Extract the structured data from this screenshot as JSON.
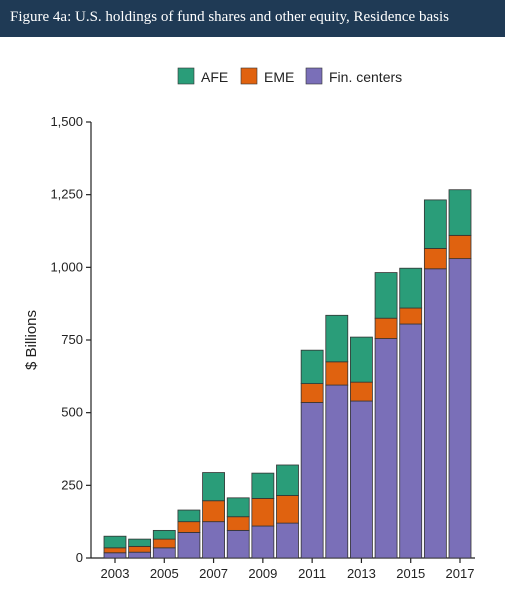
{
  "figure": {
    "title": "Figure 4a: U.S. holdings of fund shares and other equity, Residence basis"
  },
  "colors": {
    "header_bg": "#1f3a55",
    "AFE": "#2a9d79",
    "EME": "#e0620f",
    "Fin. centers": "#7a6fb8"
  },
  "chart_data": {
    "type": "bar",
    "stacked": true,
    "title": "",
    "xlabel": "",
    "ylabel": "$ Billions",
    "ylim": [
      0,
      1500
    ],
    "yticks": [
      0,
      250,
      500,
      750,
      1000,
      1250,
      1500
    ],
    "ytick_labels": [
      "0",
      "250",
      "500",
      "750",
      "1,000",
      "1,250",
      "1,500"
    ],
    "categories": [
      "2003",
      "2004",
      "2005",
      "2006",
      "2007",
      "2008",
      "2009",
      "2010",
      "2011",
      "2012",
      "2013",
      "2014",
      "2015",
      "2016",
      "2017"
    ],
    "xtick_labels": [
      "2003",
      "2005",
      "2007",
      "2009",
      "2011",
      "2013",
      "2015",
      "2017"
    ],
    "legend_position": "top",
    "grid": false,
    "series": [
      {
        "name": "Fin. centers",
        "values": [
          18,
          20,
          35,
          88,
          125,
          95,
          110,
          120,
          535,
          595,
          540,
          755,
          805,
          995,
          1030
        ]
      },
      {
        "name": "EME",
        "values": [
          17,
          20,
          30,
          37,
          72,
          47,
          95,
          95,
          65,
          80,
          65,
          70,
          55,
          70,
          80
        ]
      },
      {
        "name": "AFE",
        "values": [
          40,
          25,
          30,
          40,
          97,
          65,
          87,
          105,
          115,
          160,
          155,
          157,
          137,
          167,
          157
        ]
      }
    ],
    "legend_order": [
      "AFE",
      "EME",
      "Fin. centers"
    ]
  }
}
